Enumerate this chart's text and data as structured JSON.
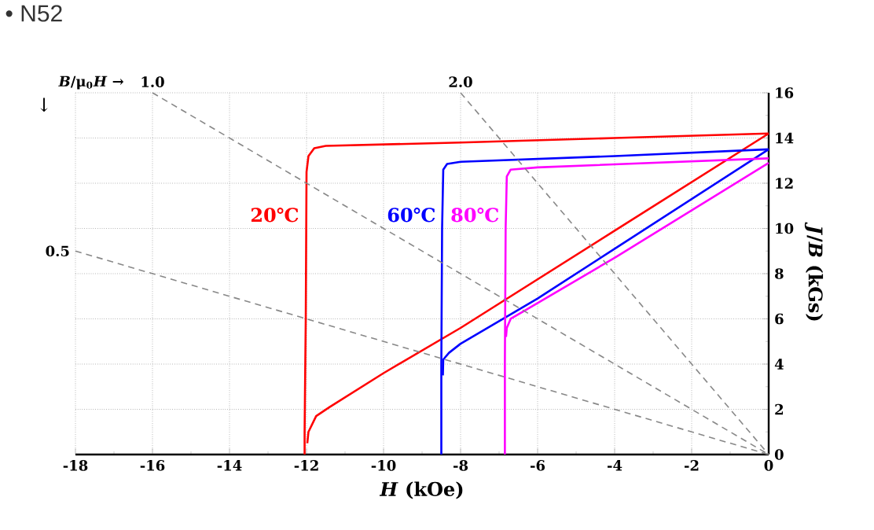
{
  "chart_data": {
    "type": "line",
    "title": "• N52",
    "xlabel": "*H*  (kOe)",
    "ylabel": "*J*/*B*  (kGs)",
    "annotations": [
      "*B*/μ$_{0}$*H* →",
      "↓",
      {
        "text": "1.0",
        "x": -16,
        "y": 16
      },
      {
        "text": "2.0",
        "x": -8,
        "y": 16
      },
      {
        "text": "0.5",
        "x": -18,
        "y": 9
      }
    ],
    "series": [
      {
        "name": "20℃",
        "color": "#ff0000",
        "x": [
          -12.05,
          -12.05,
          -12.02,
          -12.0,
          -11.95,
          -11.8,
          -11.5,
          -8,
          -4,
          0
        ],
        "values": [
          0,
          1,
          6,
          12.5,
          13.2,
          13.55,
          13.65,
          13.8,
          14.0,
          14.2
        ]
      },
      {
        "color": "#ff0000",
        "x": [
          -11.98,
          -11.95,
          -11.75,
          -11.4,
          -10,
          -8,
          -4,
          0
        ],
        "values": [
          0.5,
          1,
          1.7,
          2.1,
          3.6,
          5.6,
          9.9,
          14.2
        ]
      },
      {
        "name": "60℃",
        "color": "#0000ff",
        "x": [
          -8.5,
          -8.5,
          -8.48,
          -8.45,
          -8.35,
          -8,
          -4,
          0
        ],
        "values": [
          0,
          4,
          10,
          12.6,
          12.85,
          12.95,
          13.2,
          13.5
        ]
      },
      {
        "color": "#0000ff",
        "x": [
          -8.46,
          -8.45,
          -8.3,
          -8,
          -6,
          -4,
          0
        ],
        "values": [
          3.5,
          4.2,
          4.5,
          4.9,
          6.9,
          9.1,
          13.5
        ]
      },
      {
        "name": "80℃",
        "color": "#ff00ff",
        "x": [
          -6.85,
          -6.85,
          -6.83,
          -6.8,
          -6.7,
          -6,
          -3,
          0
        ],
        "values": [
          0,
          4,
          10,
          12.3,
          12.6,
          12.7,
          12.9,
          13.1
        ]
      },
      {
        "color": "#ff00ff",
        "x": [
          -6.82,
          -6.8,
          -6.7,
          -6.4,
          -4,
          0
        ],
        "values": [
          5.2,
          5.6,
          6.0,
          6.3,
          8.7,
          12.9
        ]
      },
      {
        "color": "#888888",
        "line_style": "dashed",
        "x": [
          -16,
          0
        ],
        "values": [
          16,
          0
        ]
      },
      {
        "color": "#888888",
        "line_style": "dashed",
        "x": [
          -8,
          0
        ],
        "values": [
          16,
          0
        ]
      },
      {
        "color": "#888888",
        "line_style": "dashed",
        "x": [
          -18,
          0
        ],
        "values": [
          9,
          0
        ]
      }
    ],
    "xlim": [
      -18,
      0
    ],
    "xticks": [
      -18,
      -16,
      -14,
      -12,
      -10,
      -8,
      -6,
      -4,
      -2,
      0
    ],
    "ylim": [
      0,
      16
    ],
    "yticks": [
      0,
      2,
      4,
      6,
      8,
      10,
      12,
      14,
      16
    ],
    "grid": true,
    "legend": false,
    "marker": "none",
    "line_style": "solid"
  }
}
